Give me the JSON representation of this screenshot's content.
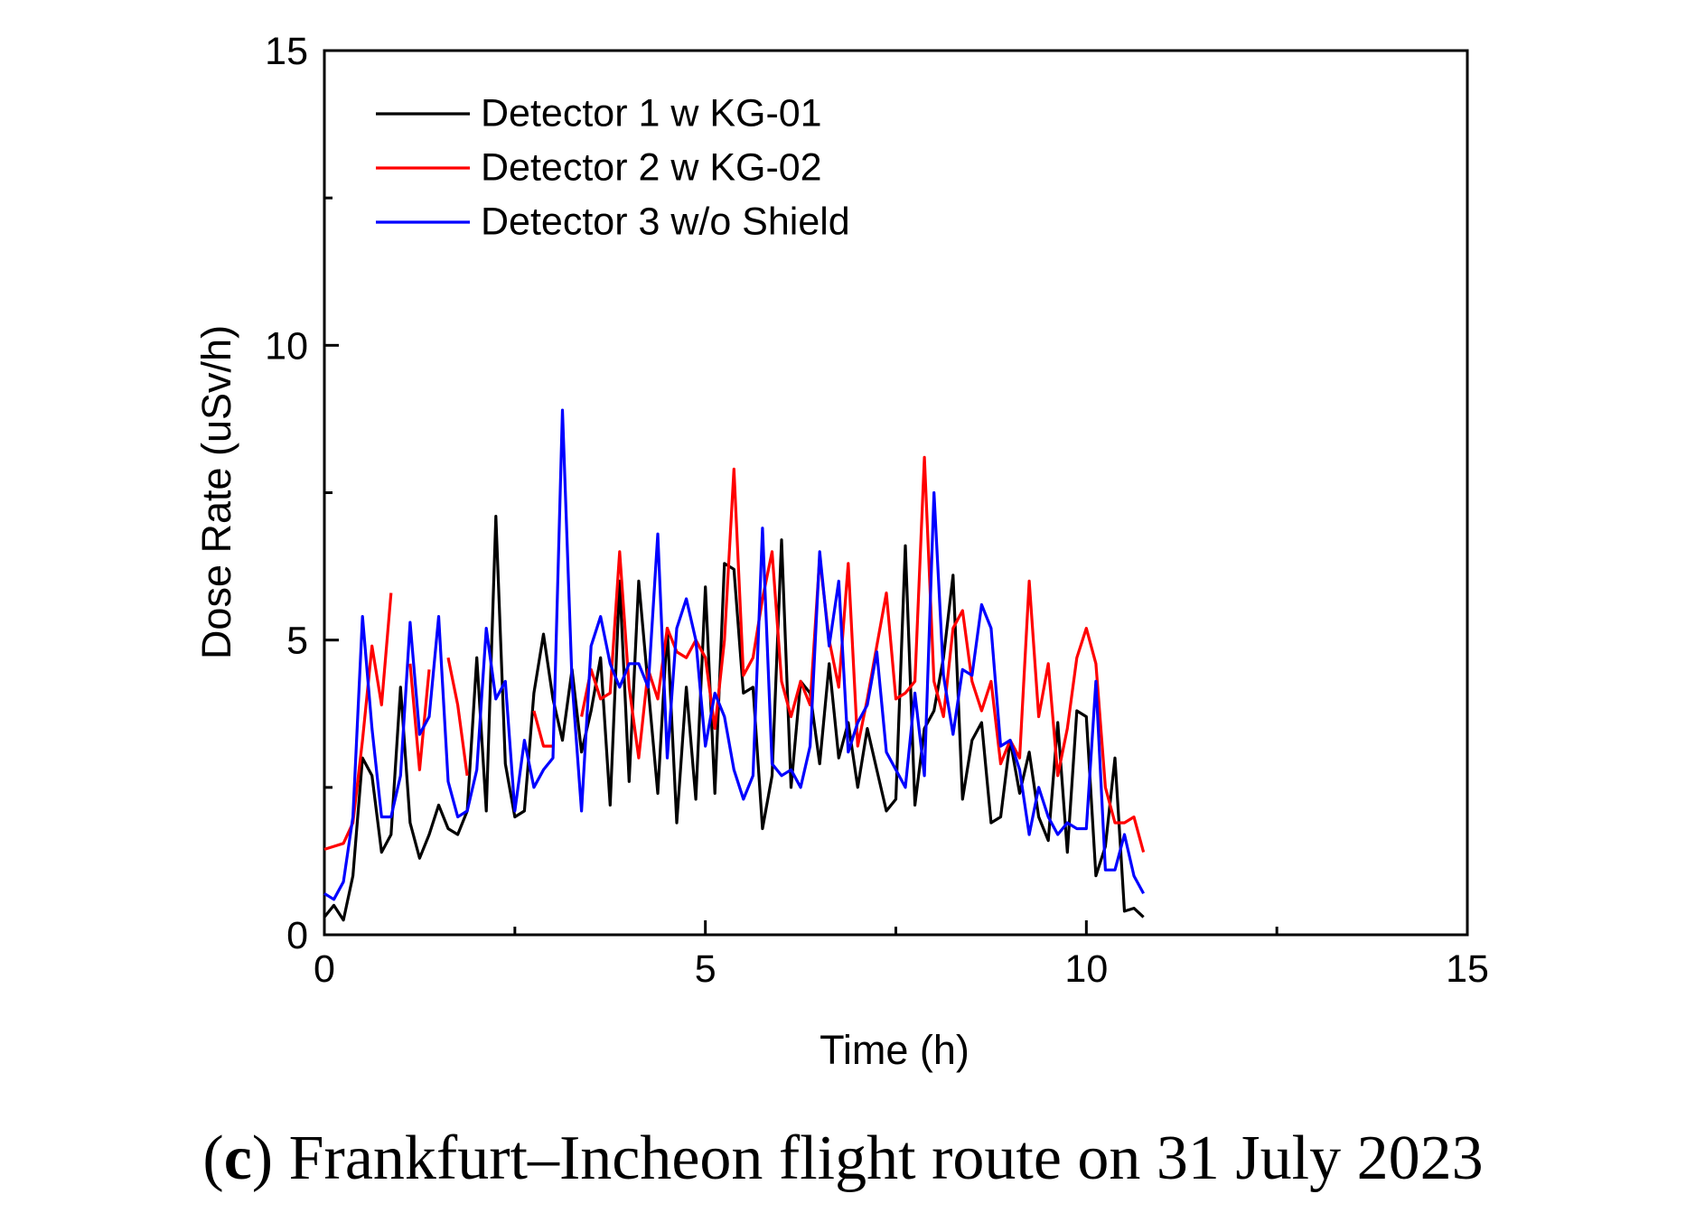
{
  "chart_data": {
    "type": "line",
    "xlabel": "Time (h)",
    "ylabel": "Dose Rate (uSv/h)",
    "caption": [
      "(",
      "c",
      ") Frankfurt–Incheon flight route on 31 July 2023"
    ],
    "xlim": [
      0,
      15
    ],
    "xticks": [
      0,
      5,
      10,
      15
    ],
    "xticks_minor": [
      2.5,
      7.5,
      12.5
    ],
    "ylim": [
      0,
      15
    ],
    "yticks": [
      0,
      5,
      10,
      15
    ],
    "yticks_minor": [
      2.5,
      7.5,
      12.5
    ],
    "legend": "upper left",
    "x": [
      0,
      0.125,
      0.25,
      0.375,
      0.5,
      0.625,
      0.75,
      0.875,
      1,
      1.125,
      1.25,
      1.375,
      1.5,
      1.625,
      1.75,
      1.875,
      2,
      2.125,
      2.25,
      2.375,
      2.5,
      2.625,
      2.75,
      2.875,
      3,
      3.125,
      3.25,
      3.375,
      3.5,
      3.625,
      3.75,
      3.875,
      4,
      4.125,
      4.25,
      4.375,
      4.5,
      4.625,
      4.75,
      4.875,
      5,
      5.125,
      5.25,
      5.375,
      5.5,
      5.625,
      5.75,
      5.875,
      6,
      6.125,
      6.25,
      6.375,
      6.5,
      6.625,
      6.75,
      6.875,
      7,
      7.125,
      7.25,
      7.375,
      7.5,
      7.625,
      7.75,
      7.875,
      8,
      8.125,
      8.25,
      8.375,
      8.5,
      8.625,
      8.75,
      8.875,
      9,
      9.125,
      9.25,
      9.375,
      9.5,
      9.625,
      9.75,
      9.875,
      10,
      10.125,
      10.25,
      10.375,
      10.5,
      10.625,
      10.75
    ],
    "series": [
      {
        "name": "Detector 1 w KG-01",
        "color": "#000000",
        "values": [
          0.3,
          0.5,
          0.25,
          1.0,
          3.0,
          2.7,
          1.4,
          1.7,
          4.2,
          1.9,
          1.3,
          1.7,
          2.2,
          1.8,
          1.7,
          2.1,
          4.7,
          2.1,
          7.1,
          2.9,
          2.0,
          2.1,
          4.1,
          5.1,
          4.0,
          3.3,
          4.5,
          3.1,
          3.8,
          4.7,
          2.2,
          6.0,
          2.6,
          6.0,
          4.2,
          2.4,
          5.2,
          1.9,
          4.2,
          2.3,
          5.9,
          2.4,
          6.3,
          6.2,
          4.1,
          4.2,
          1.8,
          2.7,
          6.7,
          2.5,
          4.3,
          4.1,
          2.9,
          4.6,
          3.0,
          3.6,
          2.5,
          3.5,
          2.8,
          2.1,
          2.3,
          6.6,
          2.2,
          3.5,
          3.8,
          4.7,
          6.1,
          2.3,
          3.3,
          3.6,
          1.9,
          2.0,
          3.3,
          2.4,
          3.1,
          2.0,
          1.6,
          3.6,
          1.4,
          3.8,
          3.7,
          1.0,
          1.5,
          3.0,
          0.4,
          0.45,
          0.3
        ]
      },
      {
        "name": "Detector 2 w KG-02",
        "color": "#ff0000",
        "values": [
          1.45,
          1.5,
          1.55,
          1.9,
          3.3,
          4.9,
          3.9,
          5.8,
          null,
          4.6,
          2.8,
          4.5,
          null,
          4.7,
          3.9,
          2.7,
          null,
          null,
          null,
          null,
          null,
          null,
          3.8,
          3.2,
          3.2,
          null,
          null,
          3.7,
          4.5,
          4.0,
          4.1,
          6.5,
          4.2,
          3.0,
          4.5,
          4.0,
          5.2,
          4.8,
          4.7,
          5.0,
          4.7,
          3.5,
          5.0,
          7.9,
          4.4,
          4.7,
          5.7,
          6.5,
          4.3,
          3.7,
          4.3,
          3.9,
          6.4,
          5.0,
          4.2,
          6.3,
          3.2,
          4.0,
          4.9,
          5.8,
          4.0,
          4.1,
          4.3,
          8.1,
          4.3,
          3.7,
          5.2,
          5.5,
          4.3,
          3.8,
          4.3,
          2.9,
          3.3,
          3.0,
          6.0,
          3.7,
          4.6,
          2.7,
          3.5,
          4.7,
          5.2,
          4.6,
          2.5,
          1.9,
          1.9,
          2.0,
          1.4
        ]
      },
      {
        "name": "Detector 3 w/o Shield",
        "color": "#0000ff",
        "values": [
          0.7,
          0.6,
          0.9,
          2.0,
          5.4,
          3.5,
          2.0,
          2.0,
          2.7,
          5.3,
          3.4,
          3.7,
          5.4,
          2.6,
          2.0,
          2.1,
          2.8,
          5.2,
          4.0,
          4.3,
          2.1,
          3.3,
          2.5,
          2.8,
          3.0,
          8.9,
          4.3,
          2.1,
          4.9,
          5.4,
          4.6,
          4.2,
          4.6,
          4.6,
          4.2,
          6.8,
          3.0,
          5.2,
          5.7,
          5.0,
          3.2,
          4.1,
          3.7,
          2.8,
          2.3,
          2.7,
          6.9,
          2.9,
          2.7,
          2.8,
          2.5,
          3.2,
          6.5,
          4.9,
          6.0,
          3.1,
          3.6,
          3.9,
          4.8,
          3.1,
          2.8,
          2.5,
          4.1,
          2.7,
          7.5,
          4.4,
          3.4,
          4.5,
          4.4,
          5.6,
          5.2,
          3.2,
          3.3,
          2.8,
          1.7,
          2.5,
          2.0,
          1.7,
          1.9,
          1.8,
          1.8,
          4.3,
          1.1,
          1.1,
          1.7,
          1.0,
          0.7
        ]
      }
    ]
  }
}
